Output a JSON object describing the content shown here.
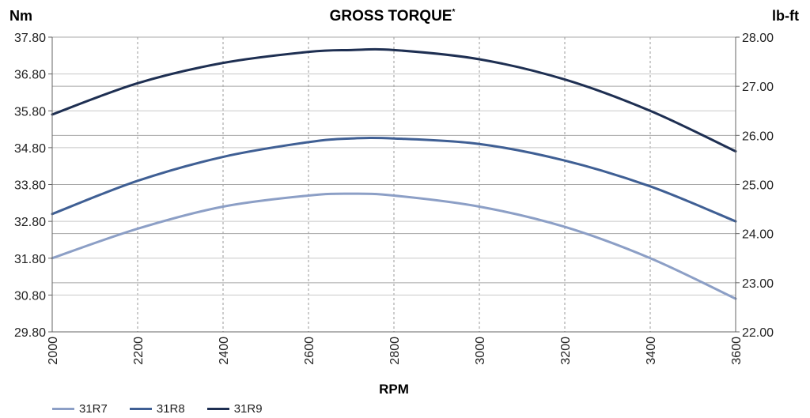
{
  "chart_data": {
    "type": "line",
    "title": "GROSS TORQUE",
    "title_mark": "*",
    "y_left_label": "Nm",
    "y_right_label": "lb-ft",
    "xlabel": "RPM",
    "xlim": [
      2000,
      3600
    ],
    "ylim_left": [
      29.8,
      37.8
    ],
    "ylim_right": [
      22.0,
      28.0
    ],
    "x_ticks": [
      "2000",
      "2200",
      "2400",
      "2600",
      "2800",
      "3000",
      "3200",
      "3400",
      "3600"
    ],
    "y_left_ticks": [
      "29.80",
      "30.80",
      "31.80",
      "32.80",
      "33.80",
      "34.80",
      "35.80",
      "36.80",
      "37.80"
    ],
    "y_right_ticks": [
      "22.00",
      "23.00",
      "24.00",
      "25.00",
      "26.00",
      "27.00",
      "28.00"
    ],
    "grid": true,
    "legend_position": "bottom-left",
    "x": [
      2000,
      2200,
      2400,
      2600,
      2700,
      2800,
      3000,
      3200,
      3400,
      3600
    ],
    "series": [
      {
        "name": "31R7",
        "color": "#8c9fc6",
        "values": [
          31.8,
          32.6,
          33.2,
          33.5,
          33.55,
          33.5,
          33.2,
          32.65,
          31.8,
          30.7
        ]
      },
      {
        "name": "31R8",
        "color": "#3f5f94",
        "values": [
          33.0,
          33.9,
          34.55,
          34.95,
          35.05,
          35.05,
          34.9,
          34.45,
          33.75,
          32.8
        ]
      },
      {
        "name": "31R9",
        "color": "#1e2f52",
        "values": [
          35.7,
          36.55,
          37.1,
          37.4,
          37.45,
          37.45,
          37.2,
          36.65,
          35.8,
          34.7
        ]
      }
    ]
  }
}
